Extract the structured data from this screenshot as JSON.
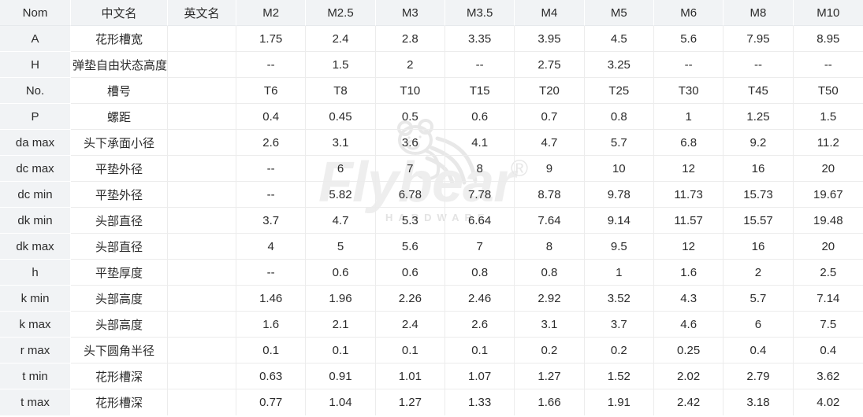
{
  "watermark": {
    "brand": "Flybear",
    "registered": "®",
    "subtitle": "HARDWARE"
  },
  "table": {
    "columns": [
      "Nom",
      "中文名",
      "英文名",
      "M2",
      "M2.5",
      "M3",
      "M3.5",
      "M4",
      "M5",
      "M6",
      "M8",
      "M10"
    ],
    "rows": [
      {
        "nom": "A",
        "cn": "花形槽宽",
        "en": "",
        "values": [
          "1.75",
          "2.4",
          "2.8",
          "3.35",
          "3.95",
          "4.5",
          "5.6",
          "7.95",
          "8.95"
        ]
      },
      {
        "nom": "H",
        "cn": "弹垫自由状态高度",
        "en": "",
        "values": [
          "--",
          "1.5",
          "2",
          "--",
          "2.75",
          "3.25",
          "--",
          "--",
          "--"
        ]
      },
      {
        "nom": "No.",
        "cn": "槽号",
        "en": "",
        "values": [
          "T6",
          "T8",
          "T10",
          "T15",
          "T20",
          "T25",
          "T30",
          "T45",
          "T50"
        ]
      },
      {
        "nom": "P",
        "cn": "螺距",
        "en": "",
        "values": [
          "0.4",
          "0.45",
          "0.5",
          "0.6",
          "0.7",
          "0.8",
          "1",
          "1.25",
          "1.5"
        ]
      },
      {
        "nom": "da max",
        "cn": "头下承面小径",
        "en": "",
        "values": [
          "2.6",
          "3.1",
          "3.6",
          "4.1",
          "4.7",
          "5.7",
          "6.8",
          "9.2",
          "11.2"
        ]
      },
      {
        "nom": "dc max",
        "cn": "平垫外径",
        "en": "",
        "values": [
          "--",
          "6",
          "7",
          "8",
          "9",
          "10",
          "12",
          "16",
          "20"
        ]
      },
      {
        "nom": "dc min",
        "cn": "平垫外径",
        "en": "",
        "values": [
          "--",
          "5.82",
          "6.78",
          "7.78",
          "8.78",
          "9.78",
          "11.73",
          "15.73",
          "19.67"
        ]
      },
      {
        "nom": "dk min",
        "cn": "头部直径",
        "en": "",
        "values": [
          "3.7",
          "4.7",
          "5.3",
          "6.64",
          "7.64",
          "9.14",
          "11.57",
          "15.57",
          "19.48"
        ]
      },
      {
        "nom": "dk max",
        "cn": "头部直径",
        "en": "",
        "values": [
          "4",
          "5",
          "5.6",
          "7",
          "8",
          "9.5",
          "12",
          "16",
          "20"
        ]
      },
      {
        "nom": "h",
        "cn": "平垫厚度",
        "en": "",
        "values": [
          "--",
          "0.6",
          "0.6",
          "0.8",
          "0.8",
          "1",
          "1.6",
          "2",
          "2.5"
        ]
      },
      {
        "nom": "k min",
        "cn": "头部高度",
        "en": "",
        "values": [
          "1.46",
          "1.96",
          "2.26",
          "2.46",
          "2.92",
          "3.52",
          "4.3",
          "5.7",
          "7.14"
        ]
      },
      {
        "nom": "k max",
        "cn": "头部高度",
        "en": "",
        "values": [
          "1.6",
          "2.1",
          "2.4",
          "2.6",
          "3.1",
          "3.7",
          "4.6",
          "6",
          "7.5"
        ]
      },
      {
        "nom": "r max",
        "cn": "头下圆角半径",
        "en": "",
        "values": [
          "0.1",
          "0.1",
          "0.1",
          "0.1",
          "0.2",
          "0.2",
          "0.25",
          "0.4",
          "0.4"
        ]
      },
      {
        "nom": "t min",
        "cn": "花形槽深",
        "en": "",
        "values": [
          "0.63",
          "0.91",
          "1.01",
          "1.07",
          "1.27",
          "1.52",
          "2.02",
          "2.79",
          "3.62"
        ]
      },
      {
        "nom": "t max",
        "cn": "花形槽深",
        "en": "",
        "values": [
          "0.77",
          "1.04",
          "1.27",
          "1.33",
          "1.66",
          "1.91",
          "2.42",
          "3.18",
          "4.02"
        ]
      }
    ]
  },
  "colors": {
    "header_bg": "#f1f3f5",
    "grid_line": "#ececec",
    "text": "#2b2b2b",
    "watermark": "#eeeeee"
  }
}
